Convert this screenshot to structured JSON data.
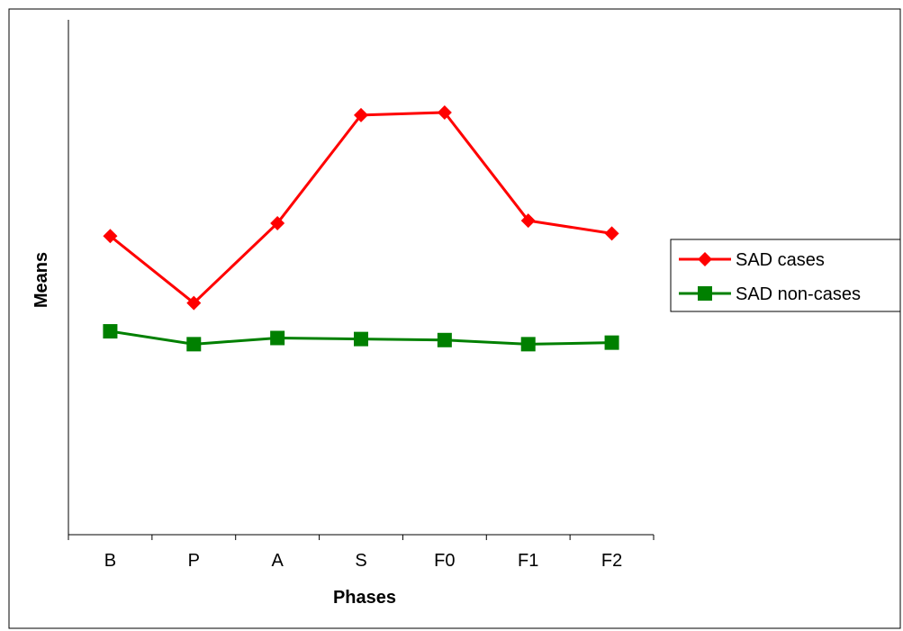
{
  "chart_data": {
    "type": "line",
    "categories": [
      "B",
      "P",
      "A",
      "S",
      "F0",
      "F1",
      "F2"
    ],
    "xlabel": "Phases",
    "ylabel": "Means",
    "ylim": [
      0,
      100
    ],
    "grid": false,
    "legend_position": "right",
    "series": [
      {
        "name": "SAD cases",
        "color": "#ff0000",
        "marker": "diamond",
        "values": [
          58,
          45,
          60.5,
          81.5,
          82,
          61,
          58.5
        ]
      },
      {
        "name": "SAD non-cases",
        "color": "#008000",
        "marker": "square",
        "values": [
          39.5,
          37,
          38.2,
          38,
          37.8,
          37,
          37.3
        ]
      }
    ]
  }
}
